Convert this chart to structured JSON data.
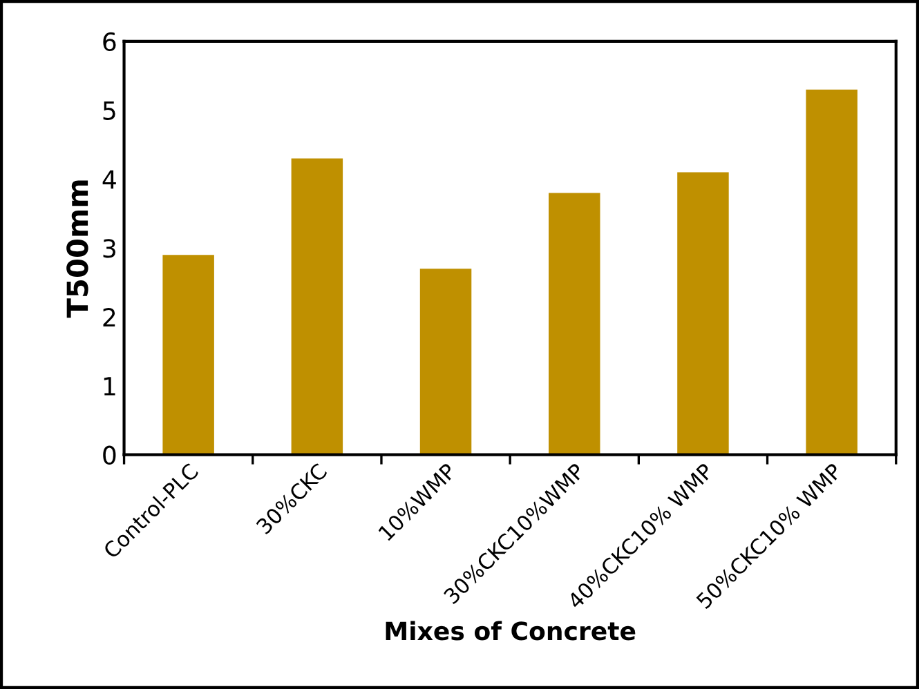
{
  "chart_data": {
    "type": "bar",
    "xlabel": "Mixes of Concrete",
    "ylabel": "T500mm",
    "categories": [
      "Control-PLC",
      "30%CKC",
      "10%WMP",
      "30%CKC10%WMP",
      "40%CKC10% WMP",
      "50%CKC10% WMP"
    ],
    "values": [
      2.9,
      4.3,
      2.7,
      3.8,
      4.1,
      5.3
    ],
    "color": "#bf9000",
    "ylim": [
      0,
      6
    ],
    "yticks": [
      0,
      1,
      2,
      3,
      4,
      5,
      6
    ],
    "grid": false,
    "legend": false
  }
}
